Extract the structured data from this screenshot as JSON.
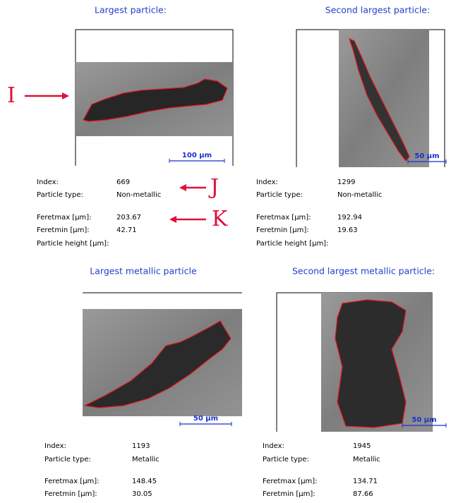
{
  "panels": [
    {
      "title": "Largest particle:",
      "scale_bar": "100 µm",
      "fields": [
        {
          "label": "Index:",
          "value": "669"
        },
        {
          "label": "Particle type:",
          "value": "Non-metallic"
        },
        {
          "label": "Feretmax [µm]:",
          "value": "203.67"
        },
        {
          "label": "Feretmin [µm]:",
          "value": "42.71"
        },
        {
          "label": "Particle height [µm]:"
        }
      ]
    },
    {
      "title": "Second largest particle:",
      "scale_bar": "50 µm",
      "fields": [
        {
          "label": "Index:",
          "value": "1299"
        },
        {
          "label": "Particle type:",
          "value": "Non-metallic"
        },
        {
          "label": "Feretmax [µm]:",
          "value": "192.94"
        },
        {
          "label": "Feretmin [µm]:",
          "value": "19.63"
        },
        {
          "label": "Particle height [µm]:"
        }
      ]
    },
    {
      "title": "Largest metallic particle",
      "scale_bar": "50 µm",
      "fields": [
        {
          "label": "Index:",
          "value": "1193"
        },
        {
          "label": "Particle type:",
          "value": "Metallic"
        },
        {
          "label": "Feretmax [µm]:",
          "value": "148.45"
        },
        {
          "label": "Feretmin [µm]:",
          "value": "30.05"
        }
      ]
    },
    {
      "title": "Second largest metallic particle:",
      "scale_bar": "50 µm",
      "fields": [
        {
          "label": "Index:",
          "value": "1945"
        },
        {
          "label": "Particle type:",
          "value": "Metallic"
        },
        {
          "label": "Feretmax [µm]:",
          "value": "134.71"
        },
        {
          "label": "Feretmin [µm]:",
          "value": "87.66"
        }
      ]
    }
  ],
  "annotations": [
    "I",
    "J",
    "K"
  ]
}
